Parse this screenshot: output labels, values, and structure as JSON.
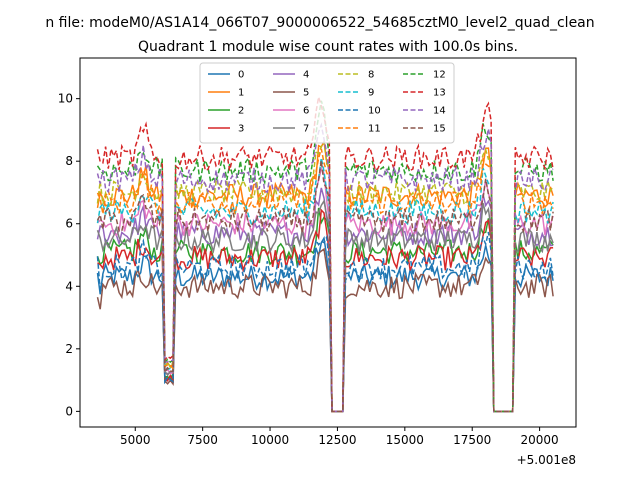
{
  "suptitle": "n file: modeM0/AS1A14_066T07_9000006522_54685cztM0_level2_quad_clean",
  "chart_data": {
    "type": "line",
    "title": "Quadrant 1 module wise count rates with 100.0s bins.",
    "xlabel": "",
    "ylabel": "",
    "x_offset_label": "+5.001e8",
    "xlim": [
      2950,
      21350
    ],
    "ylim": [
      -0.5,
      11.3
    ],
    "x_ticks": [
      5000,
      7500,
      10000,
      12500,
      15000,
      17500,
      20000
    ],
    "x_tick_labels": [
      "5000",
      "7500",
      "10000",
      "12500",
      "15000",
      "17500",
      "20000"
    ],
    "y_ticks": [
      0,
      2,
      4,
      6,
      8,
      10
    ],
    "y_tick_labels": [
      "0",
      "2",
      "4",
      "6",
      "8",
      "10"
    ],
    "x_range": [
      3600,
      20500
    ],
    "bin_step": 100,
    "gaps": [
      {
        "start": 6100,
        "end": 6400,
        "values": "low-ratio"
      },
      {
        "start": 12300,
        "end": 12700,
        "values": "zero"
      },
      {
        "start": 18300,
        "end": 19000,
        "values": "zero"
      }
    ],
    "series": [
      {
        "name": "0",
        "color": "#1f77b4",
        "style": "solid",
        "level": 4.3
      },
      {
        "name": "1",
        "color": "#ff7f0e",
        "style": "solid",
        "level": 6.9
      },
      {
        "name": "2",
        "color": "#2ca02c",
        "style": "solid",
        "level": 5.1
      },
      {
        "name": "3",
        "color": "#d62728",
        "style": "solid",
        "level": 4.9
      },
      {
        "name": "4",
        "color": "#9467bd",
        "style": "solid",
        "level": 5.7
      },
      {
        "name": "5",
        "color": "#8c564b",
        "style": "solid",
        "level": 4.0
      },
      {
        "name": "6",
        "color": "#e377c2",
        "style": "solid",
        "level": 6.0
      },
      {
        "name": "7",
        "color": "#7f7f7f",
        "style": "solid",
        "level": 5.5
      },
      {
        "name": "8",
        "color": "#bcbd22",
        "style": "dashed",
        "level": 7.0
      },
      {
        "name": "9",
        "color": "#17becf",
        "style": "dashed",
        "level": 6.4
      },
      {
        "name": "10",
        "color": "#1f77b4",
        "style": "dashed",
        "level": 4.6
      },
      {
        "name": "11",
        "color": "#ff7f0e",
        "style": "dashed",
        "level": 6.7
      },
      {
        "name": "12",
        "color": "#2ca02c",
        "style": "dashed",
        "level": 7.7
      },
      {
        "name": "13",
        "color": "#d62728",
        "style": "dashed",
        "level": 8.1
      },
      {
        "name": "14",
        "color": "#9467bd",
        "style": "dashed",
        "level": 7.4
      },
      {
        "name": "15",
        "color": "#8c564b",
        "style": "dashed",
        "level": 6.1
      }
    ],
    "legend_location": "upper-center",
    "grid": false
  }
}
